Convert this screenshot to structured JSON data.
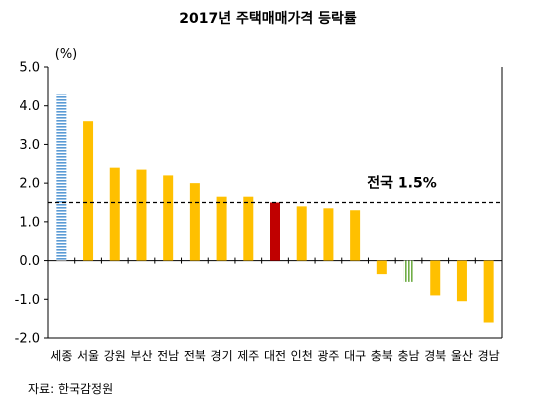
{
  "chart_data": {
    "type": "bar",
    "title": "2017년 주택매매가격 등락률",
    "unit_label": "(%)",
    "categories": [
      "세종",
      "서울",
      "강원",
      "부산",
      "전남",
      "전북",
      "경기",
      "제주",
      "대전",
      "인천",
      "광주",
      "대구",
      "충북",
      "충남",
      "경북",
      "울산",
      "경남"
    ],
    "values": [
      4.3,
      3.6,
      2.4,
      2.35,
      2.2,
      2.0,
      1.65,
      1.65,
      1.5,
      1.4,
      1.35,
      1.3,
      -0.35,
      -0.55,
      -0.9,
      -1.05,
      -1.6
    ],
    "bar_styles": [
      "hatched-blue",
      "solid-yellow",
      "solid-yellow",
      "solid-yellow",
      "solid-yellow",
      "solid-yellow",
      "solid-yellow",
      "solid-yellow",
      "solid-red",
      "solid-yellow",
      "solid-yellow",
      "solid-yellow",
      "solid-yellow",
      "hatched-green",
      "solid-yellow",
      "solid-yellow",
      "solid-yellow"
    ],
    "colors": {
      "yellow": "#FFC000",
      "red": "#C00000",
      "blue": "#5B9BD5",
      "green": "#70AD47",
      "axis": "#000000",
      "reference_line": "#000000"
    },
    "ylim": [
      -2.0,
      5.0
    ],
    "yticks": [
      "5.0",
      "4.0",
      "3.0",
      "2.0",
      "1.0",
      "0.0",
      "-1.0",
      "-2.0"
    ],
    "reference_line": {
      "value": 1.5,
      "label": "전국 1.5%",
      "style": "dashed"
    },
    "grid": false,
    "legend": "none"
  },
  "source": "자료:  한국감정원"
}
